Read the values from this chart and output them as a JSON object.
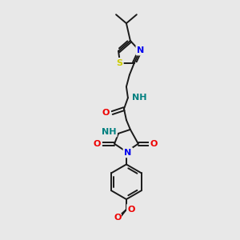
{
  "bg_color": "#e8e8e8",
  "bond_color": "#1a1a1a",
  "atom_colors": {
    "N": "#0000ee",
    "NH": "#008080",
    "O": "#ee0000",
    "S": "#cccc00",
    "C": "#1a1a1a"
  },
  "fig_width": 3.0,
  "fig_height": 3.0,
  "dpi": 100
}
